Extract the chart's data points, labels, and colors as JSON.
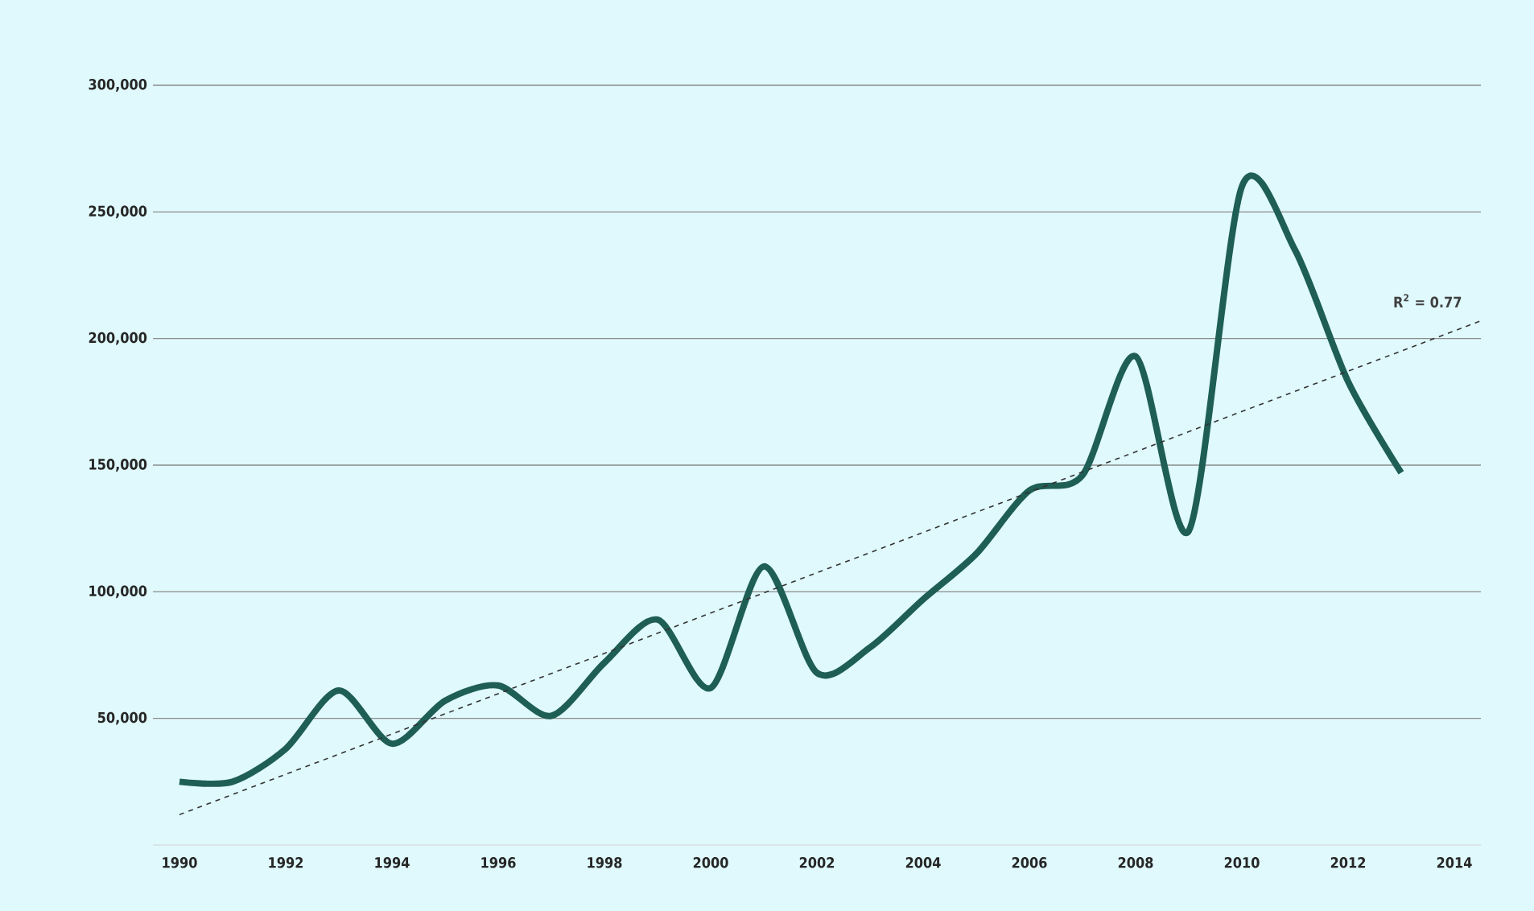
{
  "chart_data": {
    "type": "line",
    "x": [
      1990,
      1991,
      1992,
      1993,
      1994,
      1995,
      1996,
      1997,
      1998,
      1999,
      2000,
      2001,
      2002,
      2003,
      2004,
      2005,
      2006,
      2007,
      2008,
      2009,
      2010,
      2011,
      2012,
      2013
    ],
    "series": [
      {
        "type": "line",
        "color": "#1e5e55",
        "line_style": "solid",
        "values": [
          25000,
          25000,
          38000,
          61000,
          40000,
          57000,
          63000,
          51000,
          72000,
          89000,
          62000,
          110000,
          68000,
          78000,
          97000,
          115000,
          140000,
          146000,
          193000,
          124000,
          260000,
          235000,
          183000,
          147000
        ]
      },
      {
        "type": "line",
        "color": "#333333",
        "line_style": "dashed",
        "x": [
          1990,
          2014.5
        ],
        "values": [
          12000,
          207000
        ]
      }
    ],
    "xlim": [
      1989.5,
      2014.5
    ],
    "ylim": [
      0,
      300000
    ],
    "xticks": [
      1990,
      1992,
      1994,
      1996,
      1998,
      2000,
      2002,
      2004,
      2006,
      2008,
      2010,
      2012,
      2014
    ],
    "yticks": [
      {
        "value": 50000,
        "label": "50,000"
      },
      {
        "value": 100000,
        "label": "100,000"
      },
      {
        "value": 150000,
        "label": "150,000"
      },
      {
        "value": 200000,
        "label": "200,000"
      },
      {
        "value": 250000,
        "label": "250,000"
      },
      {
        "value": 300000,
        "label": "300,000"
      }
    ],
    "grid": "y",
    "annotations": [
      "R$^{2}$ = 0.77"
    ]
  }
}
